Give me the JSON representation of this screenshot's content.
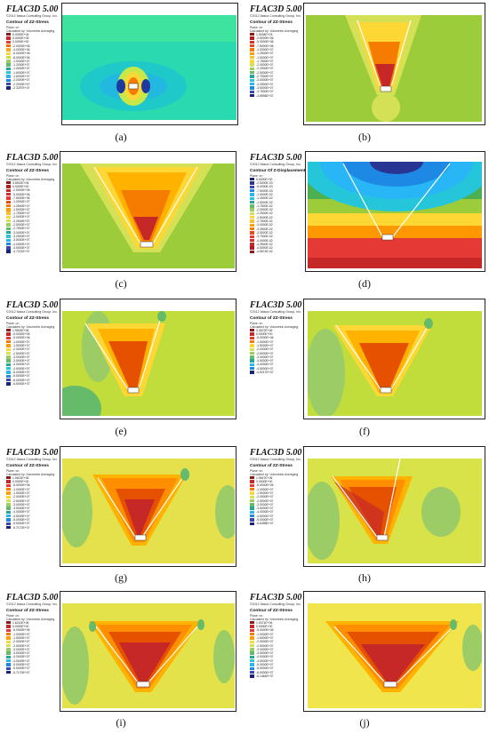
{
  "panels": [
    {
      "id": "a",
      "caption": "(a)",
      "title": "FLAC3D 5.00",
      "copyright": "©2012 Itasca Consulting Group, Inc.",
      "contour": "Contour of ZZ-Stress",
      "plane": "Plane: on",
      "calc": "Calculated by: Volumetric Averaging",
      "legend": [
        "9.0000E+04",
        "5.0000E+05",
        "0.0000E+00",
        "-2.0000E+06",
        "-4.0000E+06",
        "-6.0000E+06",
        "-8.0000E+06",
        "-1.0000E+07",
        "-1.2000E+07",
        "-1.4000E+07",
        "-1.6000E+07",
        "-1.8000E+07",
        "-2.0000E+07",
        "-2.2000E+07",
        "-2.3297E+07"
      ],
      "colors": [
        "#8b1a1a",
        "#c62828",
        "#e53935",
        "#ef6c00",
        "#f9a825",
        "#fdd835",
        "#cddc39",
        "#9ccc65",
        "#66bb6a",
        "#26a69a",
        "#26c6da",
        "#29b6f6",
        "#1e88e5",
        "#3949ab",
        "#1a237e"
      ]
    },
    {
      "id": "b",
      "caption": "(b)",
      "title": "FLAC3D 5.00",
      "copyright": "©2012 Itasca Consulting Group, Inc.",
      "contour": "Contour of ZZ-Stress",
      "plane": "Plane: on",
      "calc": "Calculated by: Volumetric Averaging",
      "legend": [
        "1.9034E+03",
        "-2.5000E+06",
        "-5.0000E+06",
        "-7.5000E+06",
        "-1.0000E+07",
        "-1.2500E+07",
        "-1.5000E+07",
        "-1.7500E+07",
        "-2.0000E+07",
        "-2.2500E+07",
        "-2.5000E+07",
        "-2.7500E+07",
        "-3.0000E+07",
        "-3.2500E+07",
        "-3.5000E+07",
        "-3.7500E+07",
        "-3.8996E+07"
      ],
      "colors": [
        "#8b1a1a",
        "#b71c1c",
        "#d32f2f",
        "#e64a19",
        "#f57c00",
        "#ffa000",
        "#fbc02d",
        "#fdd835",
        "#d4e157",
        "#9ccc65",
        "#66bb6a",
        "#26a69a",
        "#26c6da",
        "#29b6f6",
        "#1e88e5",
        "#3949ab",
        "#1a237e"
      ]
    },
    {
      "id": "c",
      "caption": "(c)",
      "title": "FLAC3D 5.00",
      "copyright": "©2012 Itasca Consulting Group, Inc.",
      "contour": "Contour of ZZ-Stress",
      "plane": "Plane: on",
      "calc": "Calculated by: Volumetric Averaging",
      "legend": [
        "3.5522E+06",
        "0.0000E+00",
        "-2.5000E+06",
        "-5.0000E+06",
        "-7.5000E+06",
        "-1.0000E+07",
        "-1.2500E+07",
        "-1.5000E+07",
        "-1.7500E+07",
        "-2.0000E+07",
        "-2.2500E+07",
        "-2.5000E+07",
        "-2.7500E+07",
        "-3.0000E+07",
        "-3.2500E+07",
        "-3.5000E+07",
        "-4.0000E+07",
        "-4.5000E+07",
        "-4.7221E+07"
      ],
      "colors": [
        "#8b1a1a",
        "#b71c1c",
        "#c62828",
        "#d32f2f",
        "#e53935",
        "#e64a19",
        "#f57c00",
        "#ffa000",
        "#fbc02d",
        "#fdd835",
        "#d4e157",
        "#9ccc65",
        "#66bb6a",
        "#26a69a",
        "#26c6da",
        "#29b6f6",
        "#1e88e5",
        "#3949ab",
        "#1a237e"
      ]
    },
    {
      "id": "d",
      "caption": "(d)",
      "title": "FLAC3D 5.00",
      "copyright": "©2012 Itasca Consulting Group, Inc.",
      "contour": "Contour Of Z-Displacement",
      "plane": "Plane: on",
      "calc": "",
      "legend": [
        "5.0000E+00",
        "-2.5000E-03",
        "-5.0000E-03",
        "-7.5000E-03",
        "-1.0000E-02",
        "-1.2500E-02",
        "-1.5000E-02",
        "-1.7500E-02",
        "-2.0000E-02",
        "-2.2500E-02",
        "-2.5000E-02",
        "-2.7500E-02",
        "-3.0000E-02",
        "-3.2500E-02",
        "-3.5000E-02",
        "-3.7500E-02",
        "-4.0000E-02",
        "-4.2500E-02",
        "-4.5000E-02",
        "-4.5674E-02"
      ],
      "colors": [
        "#1a237e",
        "#283593",
        "#3949ab",
        "#1e88e5",
        "#29b6f6",
        "#26c6da",
        "#26a69a",
        "#66bb6a",
        "#9ccc65",
        "#d4e157",
        "#fdd835",
        "#fbc02d",
        "#ffa000",
        "#f57c00",
        "#e64a19",
        "#e53935",
        "#d32f2f",
        "#c62828",
        "#b71c1c",
        "#8b1a1a"
      ]
    },
    {
      "id": "e",
      "caption": "(e)",
      "title": "FLAC3D 5.00",
      "copyright": "©2012 Itasca Consulting Group, Inc.",
      "contour": "Contour of ZZ-Stress",
      "plane": "Plane: on",
      "calc": "Calculated by: Volumetric Averaging",
      "legend": [
        "1.9502E+06",
        "-5.0000E+05",
        "-5.0000E+06",
        "-1.0000E+07",
        "-1.5000E+07",
        "-2.0000E+07",
        "-2.5000E+07",
        "-3.0000E+07",
        "-3.5000E+07",
        "-4.0000E+07",
        "-4.5000E+07",
        "-5.0000E+07",
        "-5.5000E+07",
        "-6.0000E+07",
        "-6.5000E+07"
      ],
      "colors": [
        "#8b1a1a",
        "#c62828",
        "#e53935",
        "#f57c00",
        "#ffa000",
        "#fdd835",
        "#d4e157",
        "#9ccc65",
        "#66bb6a",
        "#26a69a",
        "#26c6da",
        "#29b6f6",
        "#1e88e5",
        "#3949ab",
        "#1a237e"
      ]
    },
    {
      "id": "f",
      "caption": "(f)",
      "title": "FLAC3D 5.00",
      "copyright": "©2012 Itasca Consulting Group, Inc.",
      "contour": "Contour of ZZ-Stress",
      "plane": "Plane: on",
      "calc": "Calculated by: Volumetric Averaging",
      "legend": [
        "3.3672E+06",
        "0.0000E+00",
        "-5.0000E+06",
        "-1.0000E+07",
        "-1.5000E+07",
        "-2.0000E+07",
        "-2.5000E+07",
        "-3.0000E+07",
        "-3.5000E+07",
        "-4.0000E+07",
        "-4.5000E+07",
        "-4.9217E+07"
      ],
      "colors": [
        "#8b1a1a",
        "#c62828",
        "#e53935",
        "#f57c00",
        "#fdd835",
        "#d4e157",
        "#9ccc65",
        "#66bb6a",
        "#26a69a",
        "#29b6f6",
        "#1e88e5",
        "#1a237e"
      ]
    },
    {
      "id": "g",
      "caption": "(g)",
      "title": "FLAC3D 5.00",
      "copyright": "©2012 Itasca Consulting Group, Inc.",
      "contour": "Contour of ZZ-Stress",
      "plane": "Plane: on",
      "calc": "Calculated by: Volumetric Averaging",
      "legend": [
        "1.9621E+06",
        "0.0000E+00",
        "-5.0000E+06",
        "-1.0000E+07",
        "-1.5000E+07",
        "-2.0000E+07",
        "-2.5000E+07",
        "-3.0000E+07",
        "-3.5000E+07",
        "-4.0000E+07",
        "-4.5000E+07",
        "-5.0000E+07",
        "-5.5000E+07",
        "-5.7170E+07"
      ],
      "colors": [
        "#8b1a1a",
        "#c62828",
        "#e53935",
        "#f57c00",
        "#ffa000",
        "#fdd835",
        "#d4e157",
        "#9ccc65",
        "#66bb6a",
        "#26a69a",
        "#29b6f6",
        "#1e88e5",
        "#3949ab",
        "#1a237e"
      ]
    },
    {
      "id": "h",
      "caption": "(h)",
      "title": "FLAC3D 5.00",
      "copyright": "©2012 Itasca Consulting Group, Inc.",
      "contour": "Contour of ZZ-Stress",
      "plane": "Plane: on",
      "calc": "Calculated by: Volumetric Averaging",
      "legend": [
        "1.9547E+06",
        "0.0000E+00",
        "-5.0000E+06",
        "-1.0000E+07",
        "-1.5000E+07",
        "-2.0000E+07",
        "-2.5000E+07",
        "-3.0000E+07",
        "-3.5000E+07",
        "-4.0000E+07",
        "-4.5000E+07",
        "-5.0000E+07",
        "-5.6498E+07"
      ],
      "colors": [
        "#8b1a1a",
        "#c62828",
        "#e53935",
        "#f57c00",
        "#fdd835",
        "#d4e157",
        "#9ccc65",
        "#66bb6a",
        "#26a69a",
        "#29b6f6",
        "#1e88e5",
        "#3949ab",
        "#1a237e"
      ]
    },
    {
      "id": "i",
      "caption": "(i)",
      "title": "FLAC3D 5.00",
      "copyright": "©2012 Itasca Consulting Group, Inc.",
      "contour": "Contour of ZZ-Stress",
      "plane": "Plane: on",
      "calc": "Calculated by: Volumetric Averaging",
      "legend": [
        "1.6210E+06",
        "0.0000E+00",
        "-5.0000E+06",
        "-1.0000E+07",
        "-1.5000E+07",
        "-2.0000E+07",
        "-2.5000E+07",
        "-3.0000E+07",
        "-3.5000E+07",
        "-4.0000E+07",
        "-4.5000E+07",
        "-5.0000E+07",
        "-5.5000E+07",
        "-5.7170E+07"
      ],
      "colors": [
        "#8b1a1a",
        "#c62828",
        "#e53935",
        "#f57c00",
        "#ffa000",
        "#fdd835",
        "#d4e157",
        "#9ccc65",
        "#66bb6a",
        "#26a69a",
        "#29b6f6",
        "#1e88e5",
        "#3949ab",
        "#1a237e"
      ]
    },
    {
      "id": "j",
      "caption": "(j)",
      "title": "FLAC3D 5.00",
      "copyright": "©2012 Itasca Consulting Group, Inc.",
      "contour": "Contour of ZZ-Stress",
      "plane": "Plane: on",
      "calc": "Calculated by: Volumetric Averaging",
      "legend": [
        "1.9371E+06",
        "0.0000E+00",
        "-5.0000E+06",
        "-1.0000E+07",
        "-1.5000E+07",
        "-2.0000E+07",
        "-2.5000E+07",
        "-3.0000E+07",
        "-3.5000E+07",
        "-4.0000E+07",
        "-4.5000E+07",
        "-5.0000E+07",
        "-5.5000E+07",
        "-6.0000E+07",
        "-6.1464E+07"
      ],
      "colors": [
        "#8b1a1a",
        "#c62828",
        "#e53935",
        "#f57c00",
        "#ffa000",
        "#fdd835",
        "#d4e157",
        "#9ccc65",
        "#66bb6a",
        "#26a69a",
        "#26c6da",
        "#29b6f6",
        "#1e88e5",
        "#3949ab",
        "#1a237e"
      ]
    }
  ]
}
